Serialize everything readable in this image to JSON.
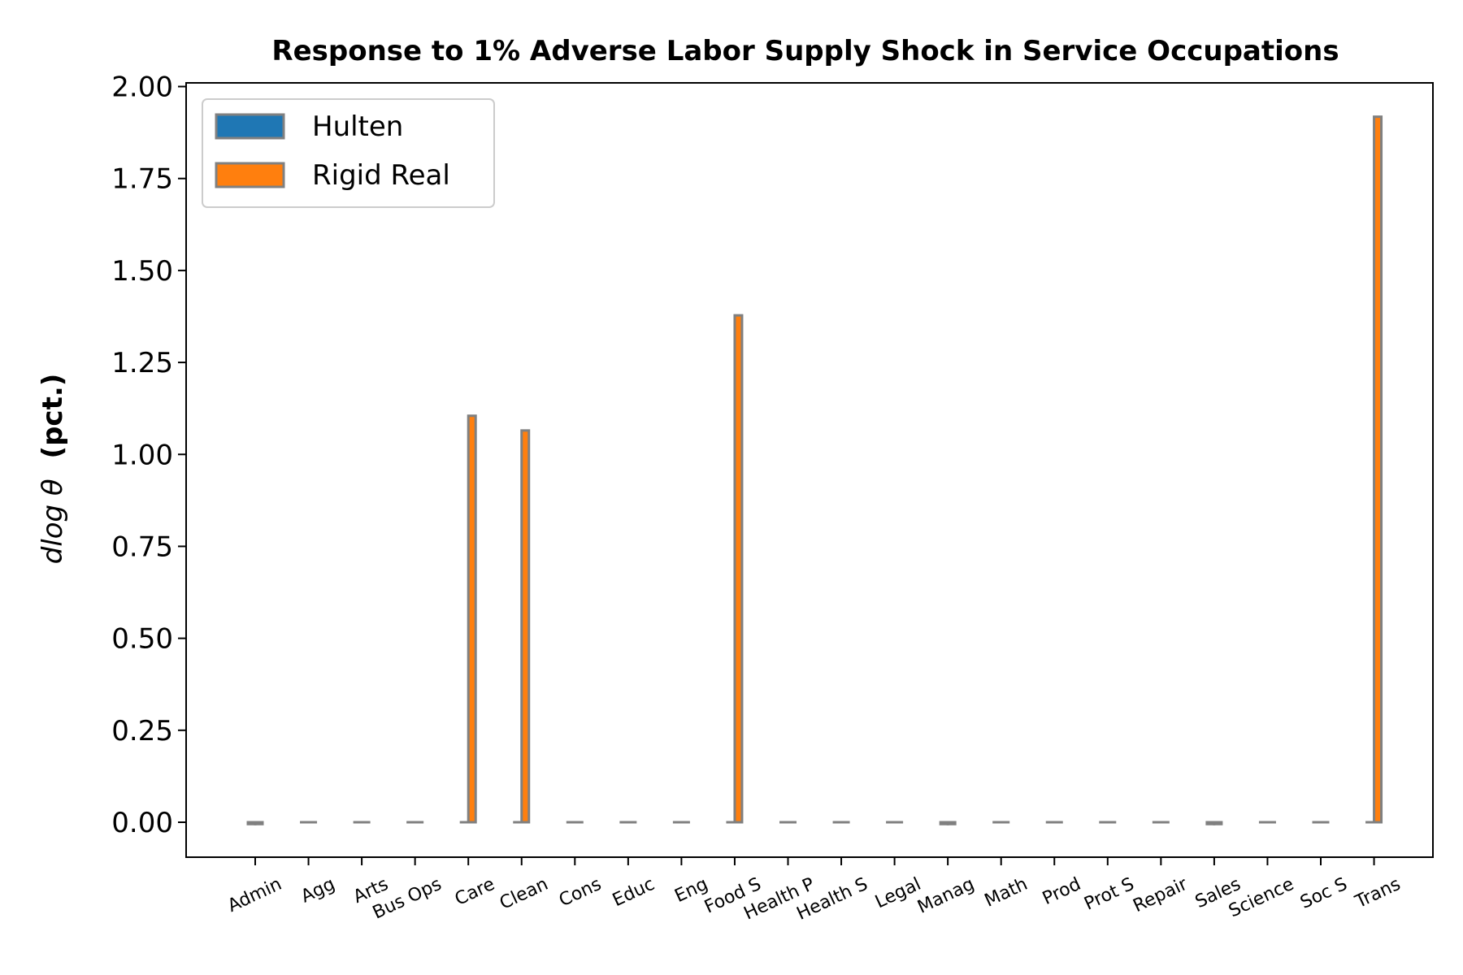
{
  "chart_data": {
    "type": "bar",
    "title": "Response to 1% Adverse Labor Supply Shock in Service Occupations",
    "xlabel": "",
    "ylabel_math": "dlog θ",
    "ylabel_bold": "(pct.)",
    "ylim": [
      -0.095,
      2.01
    ],
    "yticks": [
      "0.00",
      "0.25",
      "0.50",
      "0.75",
      "1.00",
      "1.25",
      "1.50",
      "1.75",
      "2.00"
    ],
    "ytick_values": [
      0,
      0.25,
      0.5,
      0.75,
      1.0,
      1.25,
      1.5,
      1.75,
      2.0
    ],
    "grid": false,
    "legend_position": "top-left",
    "categories": [
      "Admin",
      "Agg",
      "Arts",
      "Bus Ops",
      "Care",
      "Clean",
      "Cons",
      "Educ",
      "Eng",
      "Food S",
      "Health P",
      "Health S",
      "Legal",
      "Manag",
      "Math",
      "Prod",
      "Prot S",
      "Repair",
      "Sales",
      "Science",
      "Soc S",
      "Trans"
    ],
    "series": [
      {
        "name": "Hulten",
        "color": "#1f77b4",
        "values": [
          -0.005,
          0,
          0,
          0,
          0,
          0,
          0,
          0,
          0,
          0,
          0,
          0,
          0,
          -0.005,
          0,
          0,
          0,
          0,
          -0.005,
          0,
          0,
          0
        ]
      },
      {
        "name": "Rigid Real",
        "color": "#ff7f0e",
        "values": [
          -0.005,
          0,
          0,
          0,
          1.105,
          1.065,
          0,
          0,
          0,
          1.378,
          0,
          0,
          0,
          -0.005,
          0,
          0,
          0,
          0,
          -0.005,
          0,
          0,
          1.918
        ]
      }
    ],
    "edge_color": "#808080"
  }
}
